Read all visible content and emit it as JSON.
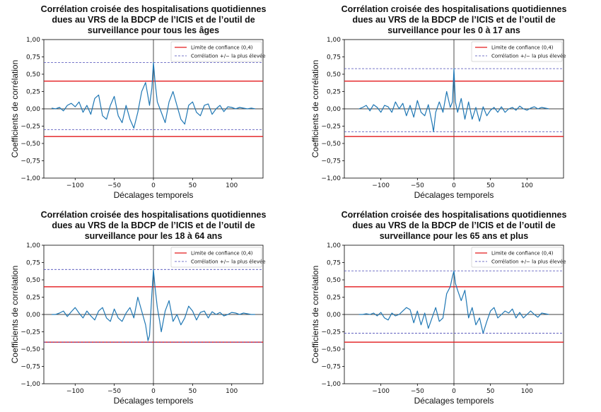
{
  "colors": {
    "series": "#1f77b4",
    "confidence": "#e31a1c",
    "max_corr": "#4b4bb8",
    "axis": "#000000"
  },
  "chart_data": [
    {
      "type": "line",
      "title": [
        "Corrélation croisée des hospitalisations quotidiennes",
        "dues au VRS de la BDCP de l’ICIS et de l’outil de",
        "surveillance pour tous les âges"
      ],
      "xlabel": "Décalages temporels",
      "ylabel": "Coefficients de corrélation",
      "xlim": [
        -140,
        140
      ],
      "ylim": [
        -1.0,
        1.0
      ],
      "xticks": [
        -100,
        -50,
        0,
        50,
        100
      ],
      "xtick_labels": [
        "−100",
        "−50",
        "0",
        "50",
        "100"
      ],
      "yticks": [
        -1.0,
        -0.75,
        -0.5,
        -0.25,
        0.0,
        0.25,
        0.5,
        0.75,
        1.0
      ],
      "ytick_labels": [
        "−1,00",
        "−0,75",
        "−0,50",
        "−0,25",
        "0,00",
        "0,25",
        "0,50",
        "0,75",
        "1,00"
      ],
      "confidence_limit": 0.4,
      "max_pos": 0.67,
      "max_neg": -0.3,
      "legend": [
        "Limite de confiance (0,4)",
        "Corrélation +/− la plus élevée"
      ],
      "legend_position": "top-right",
      "x": [
        -130,
        -125,
        -120,
        -115,
        -110,
        -105,
        -100,
        -95,
        -90,
        -85,
        -80,
        -75,
        -70,
        -65,
        -60,
        -55,
        -50,
        -45,
        -40,
        -35,
        -30,
        -25,
        -20,
        -15,
        -10,
        -5,
        -2,
        0,
        2,
        5,
        10,
        15,
        20,
        25,
        30,
        35,
        40,
        45,
        50,
        55,
        60,
        65,
        70,
        75,
        80,
        85,
        90,
        95,
        100,
        105,
        110,
        115,
        120,
        125,
        130
      ],
      "y": [
        0.01,
        0.0,
        0.02,
        -0.03,
        0.05,
        0.08,
        0.03,
        0.1,
        -0.05,
        0.05,
        -0.08,
        0.15,
        0.2,
        -0.1,
        -0.15,
        0.05,
        0.18,
        -0.1,
        -0.2,
        0.05,
        -0.15,
        -0.28,
        -0.05,
        0.25,
        0.38,
        0.05,
        0.3,
        0.67,
        0.4,
        0.1,
        -0.05,
        -0.2,
        0.1,
        0.25,
        0.05,
        -0.15,
        -0.22,
        0.05,
        0.1,
        -0.05,
        -0.1,
        0.05,
        0.07,
        -0.08,
        0.0,
        0.05,
        -0.04,
        0.03,
        0.02,
        0.0,
        0.02,
        0.01,
        0.0,
        0.01,
        0.0
      ]
    },
    {
      "type": "line",
      "title": [
        "Corrélation croisée des hospitalisations quotidiennes",
        "dues au VRS de la BDCP de l’ICIS et de l’outil de",
        "surveillance pour les 0 à 17 ans"
      ],
      "xlabel": "Décalages temporels",
      "ylabel": "Coefficients de corrélation",
      "xlim": [
        -150,
        150
      ],
      "ylim": [
        -1.0,
        1.0
      ],
      "xticks": [
        -100,
        -50,
        0,
        50,
        100
      ],
      "xtick_labels": [
        "−100",
        "−50",
        "0",
        "50",
        "100"
      ],
      "yticks": [
        -1.0,
        -0.75,
        -0.5,
        -0.25,
        0.0,
        0.25,
        0.5,
        0.75,
        1.0
      ],
      "ytick_labels": [
        "−1,00",
        "−0,75",
        "−0,50",
        "−0,25",
        "0,00",
        "0,25",
        "0,50",
        "0,75",
        "1,00"
      ],
      "confidence_limit": 0.4,
      "max_pos": 0.58,
      "max_neg": -0.33,
      "legend": [
        "Limite de confiance (0,4)",
        "Corrélation +/− la plus élevée"
      ],
      "legend_position": "top-right",
      "x": [
        -130,
        -125,
        -120,
        -115,
        -110,
        -105,
        -100,
        -95,
        -90,
        -85,
        -80,
        -75,
        -70,
        -65,
        -60,
        -55,
        -50,
        -45,
        -40,
        -35,
        -30,
        -28,
        -25,
        -20,
        -15,
        -10,
        -5,
        -2,
        0,
        2,
        5,
        10,
        15,
        20,
        25,
        30,
        35,
        40,
        45,
        50,
        55,
        60,
        65,
        70,
        75,
        80,
        85,
        90,
        95,
        100,
        105,
        110,
        115,
        120,
        125,
        130
      ],
      "y": [
        0.0,
        0.02,
        0.05,
        -0.03,
        0.06,
        0.02,
        -0.05,
        0.05,
        0.03,
        -0.05,
        0.1,
        0.0,
        0.08,
        -0.1,
        0.05,
        -0.12,
        0.12,
        -0.05,
        -0.1,
        0.06,
        -0.2,
        -0.33,
        -0.05,
        0.1,
        -0.05,
        0.25,
        0.02,
        0.1,
        0.58,
        0.1,
        -0.05,
        0.15,
        -0.15,
        0.1,
        -0.15,
        0.02,
        -0.18,
        0.03,
        -0.1,
        -0.02,
        0.02,
        -0.05,
        0.03,
        -0.05,
        0.0,
        0.02,
        -0.02,
        0.04,
        0.0,
        -0.02,
        0.01,
        0.03,
        0.0,
        0.02,
        0.01,
        0.0
      ]
    },
    {
      "type": "line",
      "title": [
        "Corrélation croisée des hospitalisations quotidiennes",
        "dues au VRS de la BDCP de l’ICIS et de l’outil de",
        "surveillance pour les 18 à 64 ans"
      ],
      "xlabel": "Décalages temporels",
      "ylabel": "Coefficients de corrélation",
      "xlim": [
        -140,
        140
      ],
      "ylim": [
        -1.0,
        1.0
      ],
      "xticks": [
        -100,
        -50,
        0,
        50,
        100
      ],
      "xtick_labels": [
        "−100",
        "−50",
        "0",
        "50",
        "100"
      ],
      "yticks": [
        -1.0,
        -0.75,
        -0.5,
        -0.25,
        0.0,
        0.25,
        0.5,
        0.75,
        1.0
      ],
      "ytick_labels": [
        "−1,00",
        "−0,75",
        "−0,50",
        "−0,25",
        "0,00",
        "0,25",
        "0,50",
        "0,75",
        "1,00"
      ],
      "confidence_limit": 0.4,
      "max_pos": 0.65,
      "max_neg": -0.4,
      "legend": [
        "Limite de confiance (0,4)",
        "Corrélation +/− la plus élevée"
      ],
      "legend_position": "top-right",
      "x": [
        -130,
        -125,
        -120,
        -115,
        -110,
        -105,
        -100,
        -95,
        -90,
        -85,
        -80,
        -75,
        -70,
        -65,
        -60,
        -55,
        -50,
        -45,
        -40,
        -35,
        -30,
        -25,
        -20,
        -15,
        -10,
        -7,
        -5,
        -2,
        0,
        2,
        5,
        8,
        10,
        15,
        20,
        25,
        30,
        35,
        40,
        45,
        50,
        55,
        60,
        65,
        70,
        75,
        80,
        85,
        90,
        95,
        100,
        105,
        110,
        115,
        120,
        125,
        130
      ],
      "y": [
        0.0,
        0.0,
        0.02,
        0.05,
        -0.03,
        0.04,
        0.1,
        0.02,
        -0.05,
        0.05,
        -0.02,
        -0.08,
        0.05,
        0.1,
        -0.05,
        -0.1,
        0.08,
        -0.05,
        -0.1,
        0.02,
        0.1,
        -0.05,
        0.25,
        0.05,
        -0.15,
        -0.38,
        -0.3,
        0.3,
        0.65,
        0.4,
        0.1,
        -0.1,
        -0.25,
        0.05,
        0.2,
        -0.1,
        0.0,
        -0.15,
        -0.05,
        0.12,
        0.05,
        -0.08,
        0.03,
        0.05,
        -0.05,
        0.04,
        0.0,
        0.03,
        -0.02,
        0.0,
        0.03,
        0.02,
        0.0,
        0.02,
        0.01,
        0.0,
        0.0
      ]
    },
    {
      "type": "line",
      "title": [
        "Corrélation croisée des hospitalisations quotidiennes",
        "dues au VRS de la BDCP de l’ICIS et de l’outil de",
        "surveillance pour les 65 ans et plus"
      ],
      "xlabel": "Décalages temporels",
      "ylabel": "Coefficients de corrélation",
      "xlim": [
        -150,
        150
      ],
      "ylim": [
        -1.0,
        1.0
      ],
      "xticks": [
        -100,
        -50,
        0,
        50,
        100
      ],
      "xtick_labels": [
        "−100",
        "−50",
        "0",
        "50",
        "100"
      ],
      "yticks": [
        -1.0,
        -0.75,
        -0.5,
        -0.25,
        0.0,
        0.25,
        0.5,
        0.75,
        1.0
      ],
      "ytick_labels": [
        "−1,00",
        "−0,75",
        "−0,50",
        "−0,25",
        "0,00",
        "0,25",
        "0,50",
        "0,75",
        "1,00"
      ],
      "confidence_limit": 0.4,
      "max_pos": 0.63,
      "max_neg": -0.27,
      "legend": [
        "Limite de confiance (0,4)",
        "Corrélation +/− la plus élevée"
      ],
      "legend_position": "top-right",
      "x": [
        -130,
        -125,
        -120,
        -115,
        -110,
        -105,
        -100,
        -95,
        -90,
        -85,
        -80,
        -75,
        -70,
        -65,
        -60,
        -55,
        -50,
        -45,
        -40,
        -35,
        -30,
        -25,
        -20,
        -15,
        -10,
        -5,
        -2,
        0,
        2,
        5,
        10,
        15,
        20,
        25,
        30,
        35,
        40,
        45,
        50,
        55,
        60,
        65,
        70,
        75,
        80,
        85,
        90,
        95,
        100,
        105,
        110,
        115,
        120,
        125,
        130
      ],
      "y": [
        0.0,
        0.0,
        0.01,
        0.0,
        0.02,
        -0.02,
        0.03,
        -0.05,
        -0.08,
        0.02,
        -0.02,
        0.0,
        0.05,
        0.1,
        0.07,
        -0.12,
        0.05,
        -0.15,
        0.02,
        -0.2,
        -0.05,
        0.1,
        -0.1,
        -0.05,
        0.3,
        0.4,
        0.55,
        0.63,
        0.45,
        0.35,
        0.2,
        0.35,
        -0.05,
        0.1,
        -0.15,
        -0.05,
        -0.27,
        -0.1,
        0.05,
        0.1,
        -0.05,
        0.0,
        0.05,
        0.02,
        0.08,
        -0.05,
        0.03,
        -0.05,
        0.0,
        0.05,
        0.0,
        -0.04,
        0.02,
        0.01,
        0.0
      ]
    }
  ]
}
